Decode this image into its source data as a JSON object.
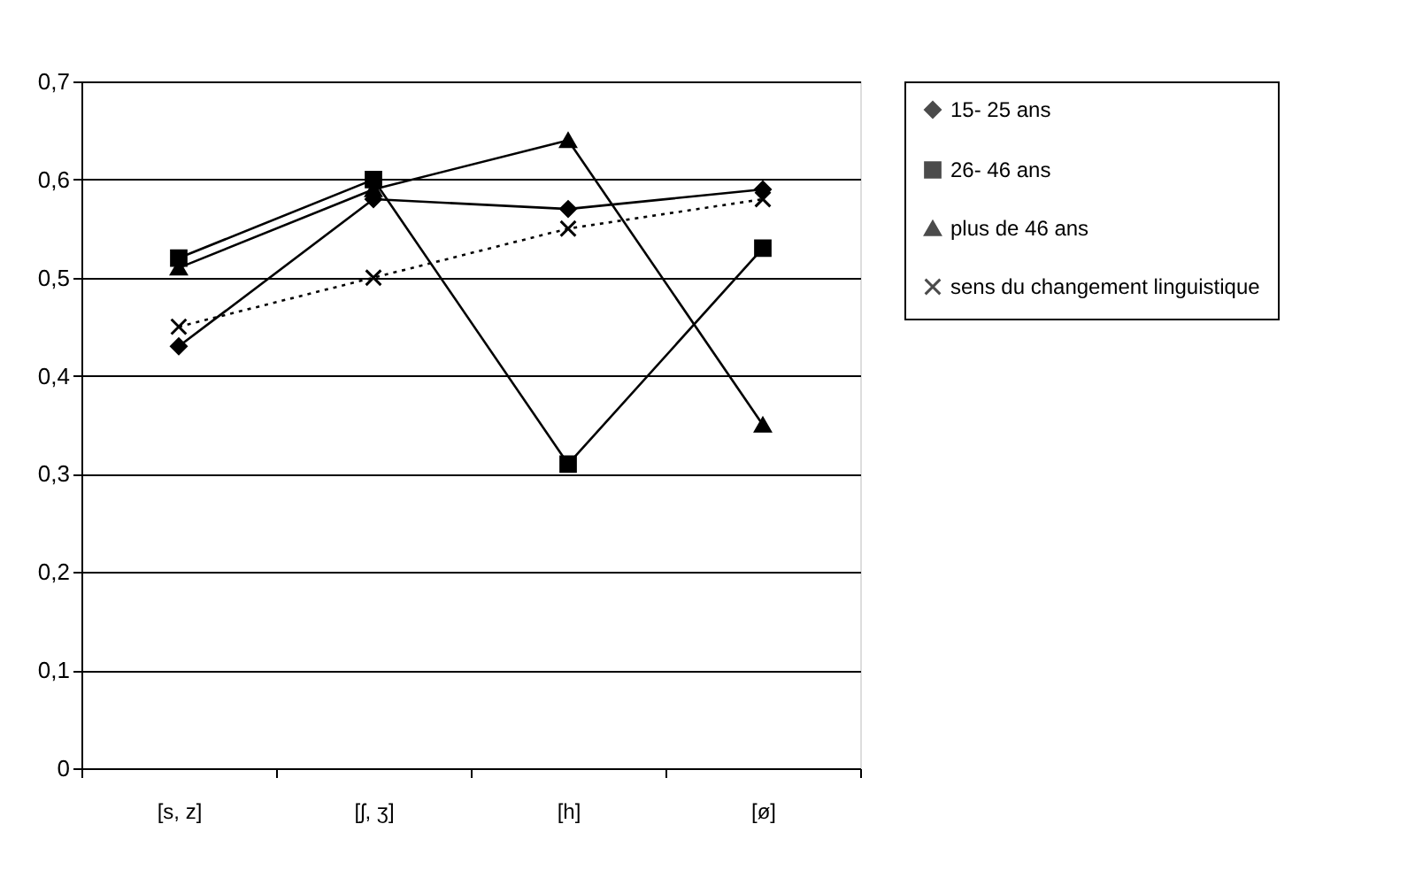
{
  "chart_data": {
    "type": "line",
    "categories": [
      "[s, z]",
      "[ʃ, ʒ]",
      "[h]",
      "[ø]"
    ],
    "series": [
      {
        "name": "15- 25 ans",
        "color": "#000000",
        "marker": "diamond",
        "line_style": "solid",
        "values": [
          0.43,
          0.58,
          0.57,
          0.59
        ]
      },
      {
        "name": "26- 46 ans",
        "color": "#000000",
        "marker": "square",
        "line_style": "solid",
        "values": [
          0.52,
          0.6,
          0.31,
          0.53
        ]
      },
      {
        "name": "plus de 46 ans",
        "color": "#000000",
        "marker": "triangle",
        "line_style": "solid",
        "values": [
          0.51,
          0.59,
          0.64,
          0.35
        ]
      },
      {
        "name": "sens du changement linguistique",
        "color": "#000000",
        "marker": "cross",
        "line_style": "dotted",
        "values": [
          0.45,
          0.5,
          0.55,
          0.58
        ]
      }
    ],
    "ylim": [
      0,
      0.7
    ],
    "yticks": [
      {
        "value": 0,
        "label": "0"
      },
      {
        "value": 0.1,
        "label": "0,1"
      },
      {
        "value": 0.2,
        "label": "0,2"
      },
      {
        "value": 0.3,
        "label": "0,3"
      },
      {
        "value": 0.4,
        "label": "0,4"
      },
      {
        "value": 0.5,
        "label": "0,5"
      },
      {
        "value": 0.6,
        "label": "0,6"
      },
      {
        "value": 0.7,
        "label": "0,7"
      }
    ],
    "grid": "y",
    "legend": "right"
  }
}
